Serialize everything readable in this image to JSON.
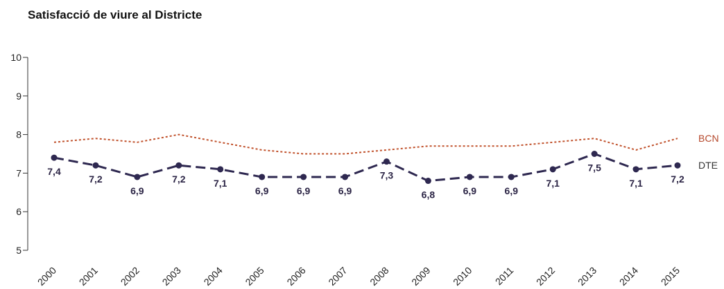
{
  "chart_data": {
    "type": "line",
    "title": "Satisfacció de viure al Districte",
    "xlabel": "",
    "ylabel": "",
    "x": [
      "2000",
      "2001",
      "2002",
      "2003",
      "2004",
      "2005",
      "2006",
      "2007",
      "2008",
      "2009",
      "2010",
      "2011",
      "2012",
      "2013",
      "2014",
      "2015"
    ],
    "ylim": [
      5,
      10
    ],
    "yticks": [
      "5",
      "6",
      "7",
      "8",
      "9",
      "10"
    ],
    "grid": false,
    "legend": "right-end-labels",
    "series": [
      {
        "name": "BCN",
        "color": "#c0502a",
        "style": "dotted",
        "values": [
          7.8,
          7.9,
          7.8,
          8.0,
          7.8,
          7.6,
          7.5,
          7.5,
          7.6,
          7.7,
          7.7,
          7.7,
          7.8,
          7.9,
          7.6,
          7.9
        ]
      },
      {
        "name": "DTE",
        "color": "#2e2850",
        "style": "dashed",
        "values": [
          7.4,
          7.2,
          6.9,
          7.2,
          7.1,
          6.9,
          6.9,
          6.9,
          7.3,
          6.8,
          6.9,
          6.9,
          7.1,
          7.5,
          7.1,
          7.2
        ],
        "labels": [
          "7,4",
          "7,2",
          "6,9",
          "7,2",
          "7,1",
          "6,9",
          "6,9",
          "6,9",
          "7,3",
          "6,8",
          "6,9",
          "6,9",
          "7,1",
          "7,5",
          "7,1",
          "7,2"
        ]
      }
    ]
  }
}
